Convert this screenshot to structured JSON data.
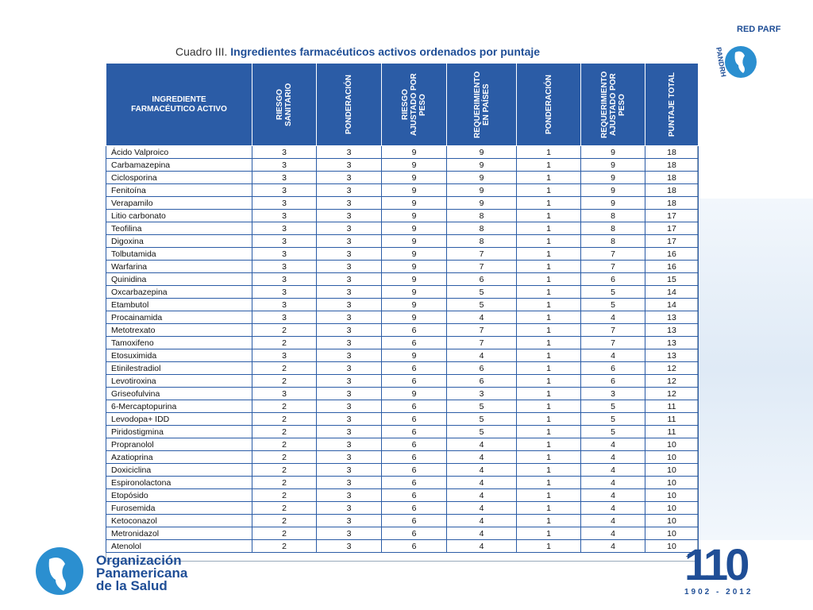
{
  "header": {
    "label": "Cuadro III.",
    "title": "Ingredientes farmacéuticos activos ordenados por puntaje"
  },
  "table": {
    "columns": [
      "INGREDIENTE FARMACÉUTICO ACTIVO",
      "RIESGO SANITARIO",
      "PONDERACIÓN",
      "RIESGO AJUSTADO POR PESO",
      "REQUERIMIENTO EN PAÍSES",
      "PONDERACIÓN",
      "REQUERIMIENTO AJUSTADO POR PESO",
      "PUNTAJE TOTAL"
    ],
    "rows": [
      [
        "Ácido Valproico",
        3,
        3,
        9,
        9,
        1,
        9,
        18
      ],
      [
        "Carbamazepina",
        3,
        3,
        9,
        9,
        1,
        9,
        18
      ],
      [
        "Ciclosporina",
        3,
        3,
        9,
        9,
        1,
        9,
        18
      ],
      [
        "Fenitoína",
        3,
        3,
        9,
        9,
        1,
        9,
        18
      ],
      [
        "Verapamilo",
        3,
        3,
        9,
        9,
        1,
        9,
        18
      ],
      [
        "Litio carbonato",
        3,
        3,
        9,
        8,
        1,
        8,
        17
      ],
      [
        "Teofilina",
        3,
        3,
        9,
        8,
        1,
        8,
        17
      ],
      [
        "Digoxina",
        3,
        3,
        9,
        8,
        1,
        8,
        17
      ],
      [
        "Tolbutamida",
        3,
        3,
        9,
        7,
        1,
        7,
        16
      ],
      [
        "Warfarina",
        3,
        3,
        9,
        7,
        1,
        7,
        16
      ],
      [
        "Quinidina",
        3,
        3,
        9,
        6,
        1,
        6,
        15
      ],
      [
        "Oxcarbazepina",
        3,
        3,
        9,
        5,
        1,
        5,
        14
      ],
      [
        "Etambutol",
        3,
        3,
        9,
        5,
        1,
        5,
        14
      ],
      [
        "Procainamida",
        3,
        3,
        9,
        4,
        1,
        4,
        13
      ],
      [
        "Metotrexato",
        2,
        3,
        6,
        7,
        1,
        7,
        13
      ],
      [
        "Tamoxifeno",
        2,
        3,
        6,
        7,
        1,
        7,
        13
      ],
      [
        "Etosuximida",
        3,
        3,
        9,
        4,
        1,
        4,
        13
      ],
      [
        "Etinilestradiol",
        2,
        3,
        6,
        6,
        1,
        6,
        12
      ],
      [
        "Levotiroxina",
        2,
        3,
        6,
        6,
        1,
        6,
        12
      ],
      [
        "Griseofulvina",
        3,
        3,
        9,
        3,
        1,
        3,
        12
      ],
      [
        "6-Mercaptopurina",
        2,
        3,
        6,
        5,
        1,
        5,
        11
      ],
      [
        "Levodopa+ IDD",
        2,
        3,
        6,
        5,
        1,
        5,
        11
      ],
      [
        "Piridostigmina",
        2,
        3,
        6,
        5,
        1,
        5,
        11
      ],
      [
        "Propranolol",
        2,
        3,
        6,
        4,
        1,
        4,
        10
      ],
      [
        "Azatioprina",
        2,
        3,
        6,
        4,
        1,
        4,
        10
      ],
      [
        "Doxiciclina",
        2,
        3,
        6,
        4,
        1,
        4,
        10
      ],
      [
        "Espironolactona",
        2,
        3,
        6,
        4,
        1,
        4,
        10
      ],
      [
        "Etopósido",
        2,
        3,
        6,
        4,
        1,
        4,
        10
      ],
      [
        "Furosemida",
        2,
        3,
        6,
        4,
        1,
        4,
        10
      ],
      [
        "Ketoconazol",
        2,
        3,
        6,
        4,
        1,
        4,
        10
      ],
      [
        "Metronidazol",
        2,
        3,
        6,
        4,
        1,
        4,
        10
      ],
      [
        "Atenolol",
        2,
        3,
        6,
        4,
        1,
        4,
        10
      ]
    ],
    "more": "..."
  },
  "logos": {
    "red": "RED PARF",
    "pandrh": "PANDRH",
    "org": [
      "Organización",
      "Panamericana",
      "de la Salud"
    ],
    "anniversary": "110",
    "years": "1902 - 2012"
  }
}
